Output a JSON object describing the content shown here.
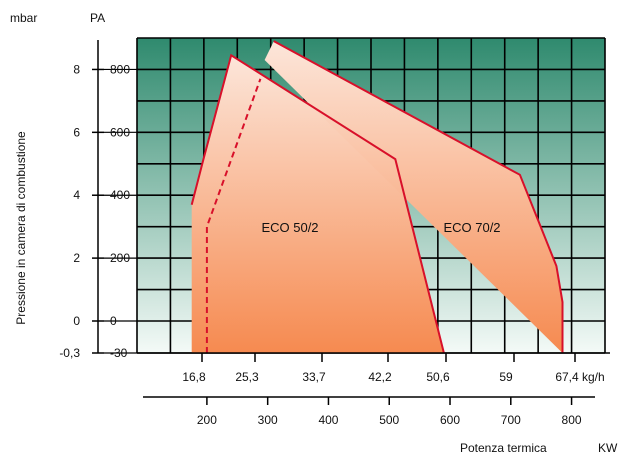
{
  "chart_data": {
    "type": "area",
    "units": {
      "left_top": "mbar",
      "right_top": "PA",
      "x_top": "kg/h",
      "x_bottom_title": "Potenza termica",
      "x_bottom_unit": "KW"
    },
    "ylabel": "Pressione in camera di combustione",
    "y_mbar_ticks": [
      "8",
      "6",
      "4",
      "2",
      "0",
      "-0,3"
    ],
    "y_mbar_values": [
      8,
      6,
      4,
      2,
      0,
      -0.3
    ],
    "y_pa_ticks": [
      "800",
      "600",
      "400",
      "200",
      "0",
      "-30"
    ],
    "y_pa_values": [
      800,
      600,
      400,
      200,
      0,
      -30
    ],
    "x_kgh_ticks": [
      "16,8",
      "25,3",
      "33,7",
      "42,2",
      "50,6",
      "59",
      "67,4"
    ],
    "x_kgh_values": [
      16.8,
      25.3,
      33.7,
      42.2,
      50.6,
      59,
      67.4
    ],
    "x_kw_ticks": [
      "200",
      "300",
      "400",
      "500",
      "600",
      "700",
      "800"
    ],
    "x_kw_values": [
      200,
      300,
      400,
      500,
      600,
      700,
      800
    ],
    "xlim_kw": [
      85,
      855
    ],
    "ylim_pa": [
      -30,
      900
    ],
    "series": [
      {
        "name": "ECO 50/2",
        "boundary_kw_pa": [
          [
            175,
            -30
          ],
          [
            175,
            370
          ],
          [
            195,
            520
          ],
          [
            240,
            845
          ],
          [
            510,
            515
          ],
          [
            590,
            -30
          ]
        ],
        "dashed_kw_pa": [
          [
            200,
            -30
          ],
          [
            200,
            300
          ],
          [
            288,
            770
          ]
        ]
      },
      {
        "name": "ECO 70/2",
        "boundary_kw_pa": [
          [
            295,
            830
          ],
          [
            310,
            890
          ],
          [
            715,
            465
          ],
          [
            775,
            175
          ],
          [
            785,
            60
          ],
          [
            785,
            -30
          ]
        ]
      }
    ],
    "colors": {
      "grid_top": "#2f8a6e",
      "grid_bottom": "#f4faf7",
      "fill_top": "#fce6da",
      "fill_bottom": "#f68a50",
      "boundary": "#d8102a"
    },
    "grid": true
  }
}
